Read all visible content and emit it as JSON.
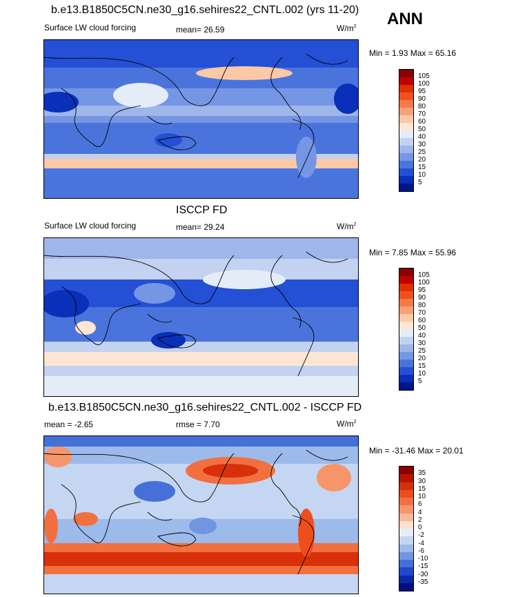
{
  "header": {
    "title": "b.e13.B1850C5CN.ne30_g16.sehires22_CNTL.002 (yrs 11-20)",
    "season": "ANN"
  },
  "panels": [
    {
      "id": "model",
      "title": "",
      "left_label": "Surface LW cloud forcing",
      "mid_label": "mean=  26.59",
      "units": "W/m",
      "units_sup": "2",
      "minmax": "Min =   1.93 Max =  65.16",
      "colorbar_labels": [
        "105",
        "100",
        "95",
        "90",
        "80",
        "70",
        "60",
        "50",
        "40",
        "30",
        "25",
        "20",
        "15",
        "10",
        "5"
      ],
      "colorbar_colors": [
        "#8b0000",
        "#c00000",
        "#e03000",
        "#f05020",
        "#f47a4a",
        "#f8a078",
        "#fbc8a8",
        "#fde6d4",
        "#e4ecf8",
        "#c2d2f0",
        "#9eb6ea",
        "#7496e4",
        "#4a74dc",
        "#2350d4",
        "#0a2fb8",
        "#00158a"
      ]
    },
    {
      "id": "obs",
      "title": "ISCCP FD",
      "left_label": "Surface LW cloud forcing",
      "mid_label": "mean=  29.24",
      "units": "W/m",
      "units_sup": "2",
      "minmax": "Min =   7.85 Max =  55.96",
      "colorbar_labels": [
        "105",
        "100",
        "95",
        "90",
        "80",
        "70",
        "60",
        "50",
        "40",
        "30",
        "25",
        "20",
        "15",
        "10",
        "5"
      ],
      "colorbar_colors": [
        "#8b0000",
        "#c00000",
        "#e03000",
        "#f05020",
        "#f47a4a",
        "#f8a078",
        "#fbc8a8",
        "#fde6d4",
        "#e4ecf8",
        "#c2d2f0",
        "#9eb6ea",
        "#7496e4",
        "#4a74dc",
        "#2350d4",
        "#0a2fb8",
        "#00158a"
      ]
    },
    {
      "id": "diff",
      "title": "b.e13.B1850C5CN.ne30_g16.sehires22_CNTL.002 - ISCCP FD",
      "left_label": "mean =  -2.65",
      "mid_label": "rmse =   7.70",
      "units": "W/m",
      "units_sup": "2",
      "minmax": "Min = -31.46 Max =  20.01",
      "colorbar_labels": [
        "35",
        "30",
        "15",
        "10",
        "6",
        "4",
        "2",
        "0",
        "-2",
        "-4",
        "-6",
        "-10",
        "-15",
        "-30",
        "-35"
      ],
      "colorbar_colors": [
        "#8b0000",
        "#b81400",
        "#d8300a",
        "#ec4e1e",
        "#f27040",
        "#f6946a",
        "#f9b89a",
        "#fce0d0",
        "#e6eefa",
        "#c4d6f2",
        "#9cbaea",
        "#7096e2",
        "#4470d8",
        "#1f48cc",
        "#0a28a8",
        "#000e80"
      ]
    }
  ],
  "colors": {
    "ocean_blue": "#3464dc",
    "land_outline": "#000000"
  }
}
